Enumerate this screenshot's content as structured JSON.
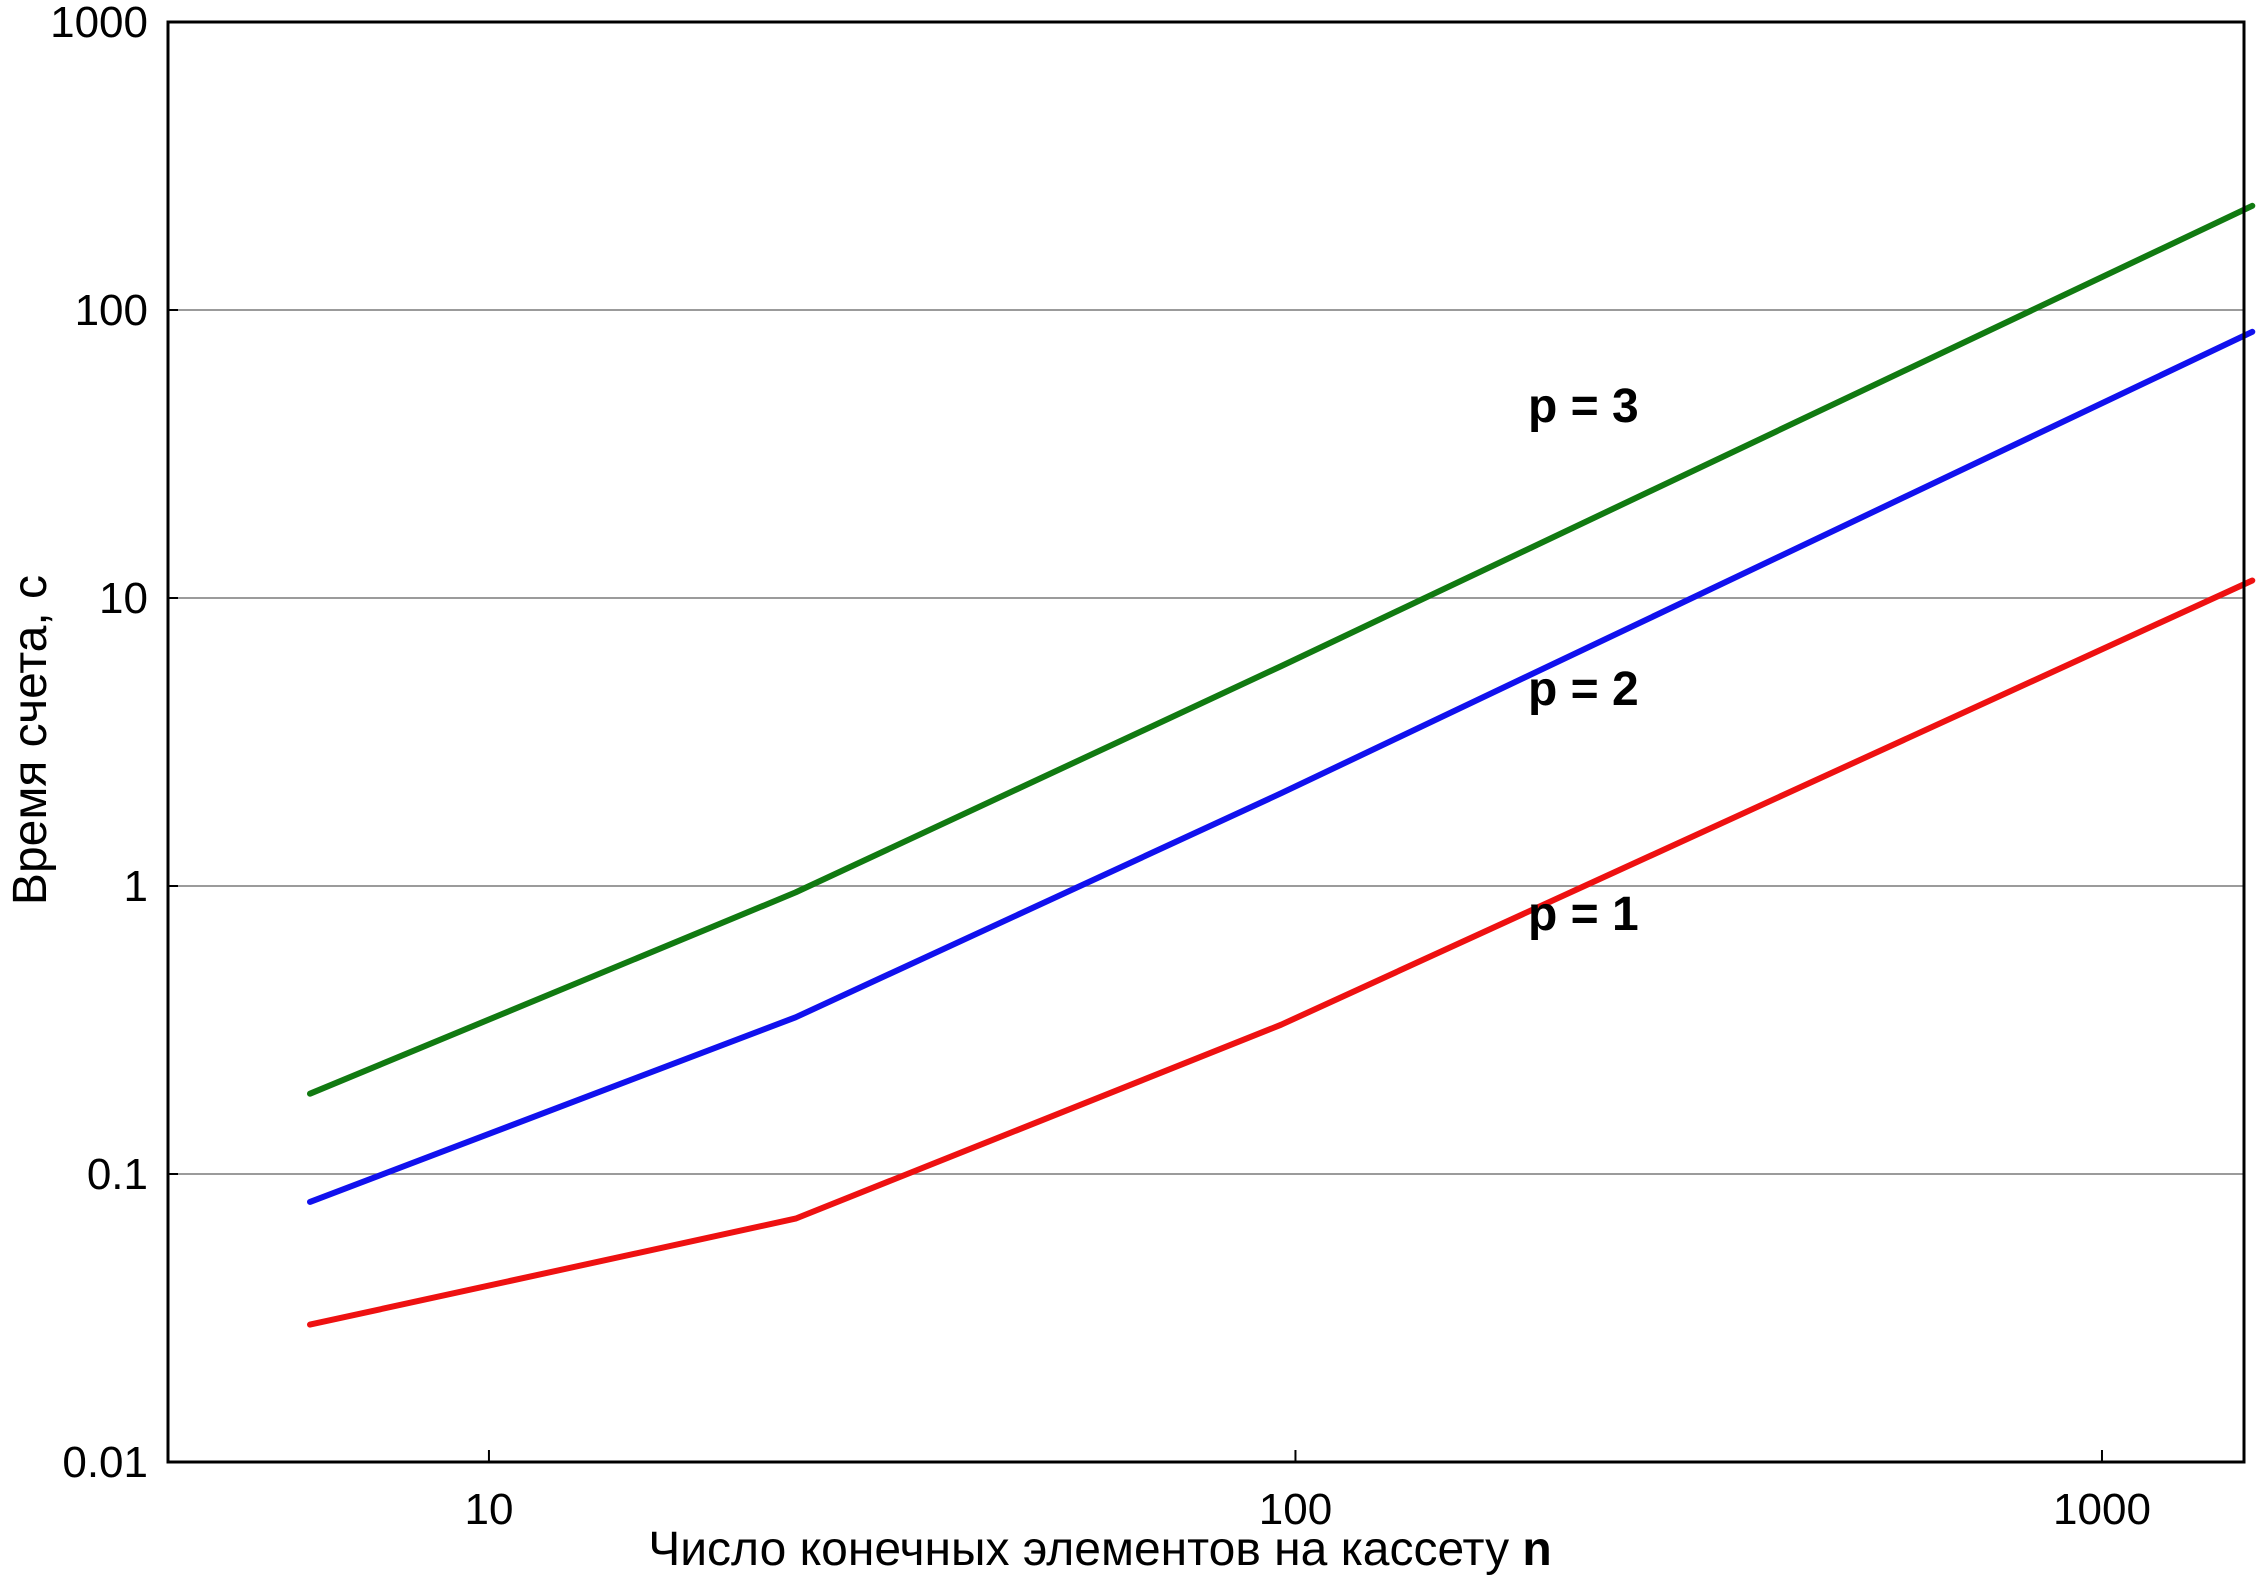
{
  "chart_data": {
    "type": "line",
    "title": "",
    "xlabel": "Число конечных элементов на кассету",
    "xlabel_var": "n",
    "ylabel": "Время счета, с",
    "x_scale": "log",
    "y_scale": "log",
    "xlim": [
      4.0,
      1500
    ],
    "ylim": [
      0.01,
      1000
    ],
    "x_ticks": [
      10,
      100,
      1000
    ],
    "x_tick_labels": [
      "10",
      "100",
      "1000"
    ],
    "y_ticks": [
      0.01,
      0.1,
      1,
      10,
      100,
      1000
    ],
    "y_tick_labels": [
      "0.01",
      "0.1",
      "1",
      "10",
      "100",
      "1000"
    ],
    "grid": "horizontal",
    "legend": "none",
    "series": [
      {
        "name": "p = 1",
        "color": "#ee1111",
        "x": [
          6,
          24,
          96,
          1536
        ],
        "y": [
          0.03,
          0.07,
          0.33,
          11.5
        ]
      },
      {
        "name": "p = 2",
        "color": "#1111ee",
        "x": [
          6,
          24,
          96,
          1536
        ],
        "y": [
          0.08,
          0.35,
          2.1,
          84
        ]
      },
      {
        "name": "p = 3",
        "color": "#117a11",
        "x": [
          6,
          24,
          96,
          1536
        ],
        "y": [
          0.19,
          0.95,
          5.8,
          230
        ]
      }
    ]
  }
}
